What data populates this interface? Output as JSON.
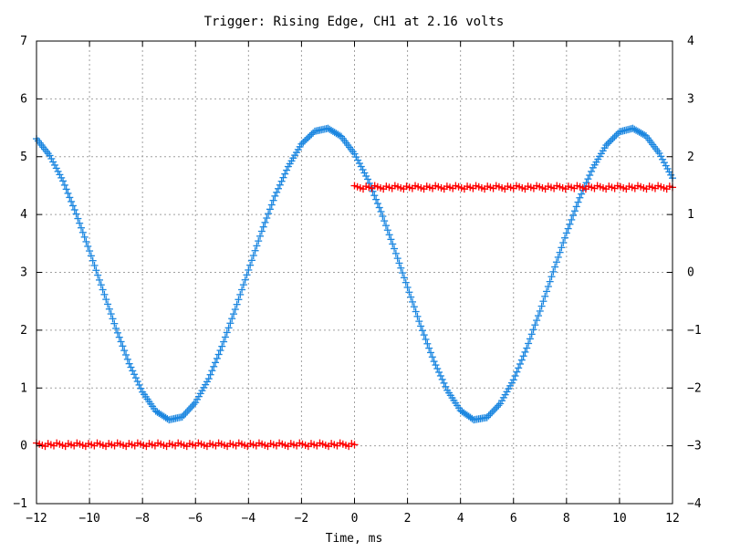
{
  "chart_data": {
    "type": "scatter",
    "title": "Trigger: Rising Edge, CH1 at 2.16 volts",
    "xlabel": "Time, ms",
    "ylabel": "",
    "y2label": "",
    "xlim": [
      -12,
      12
    ],
    "ylim": [
      -1,
      7
    ],
    "y2lim": [
      -4,
      4
    ],
    "x_ticks": [
      "-12",
      "-10",
      "-8",
      "-6",
      "-4",
      "-2",
      "0",
      "2",
      "4",
      "6",
      "8",
      "10",
      "12"
    ],
    "y_ticks": [
      "-1",
      "0",
      "1",
      "2",
      "3",
      "4",
      "5",
      "6",
      "7"
    ],
    "y2_ticks": [
      "-4",
      "-3",
      "-2",
      "-1",
      "0",
      "1",
      "2",
      "3",
      "4"
    ],
    "grid": true,
    "marker": "+",
    "series": [
      {
        "color": "#1a86e0",
        "axis": "left",
        "x": [
          -12,
          -11.5,
          -11,
          -10.5,
          -10,
          -9.5,
          -9,
          -8.5,
          -8,
          -7.5,
          -7,
          -6.5,
          -6,
          -5.5,
          -5,
          -4.5,
          -4,
          -3.5,
          -3,
          -2.5,
          -2,
          -1.5,
          -1,
          -0.5,
          0,
          0.5,
          1,
          1.5,
          2,
          2.5,
          3,
          3.5,
          4,
          4.5,
          5,
          5.5,
          6,
          6.5,
          7,
          7.5,
          8,
          8.5,
          9,
          9.5,
          10,
          10.5,
          11,
          11.5,
          12
        ],
        "y": [
          5.31,
          5.02,
          4.58,
          4.01,
          3.37,
          2.7,
          2.03,
          1.42,
          0.93,
          0.6,
          0.45,
          0.5,
          0.75,
          1.16,
          1.72,
          2.36,
          3.04,
          3.71,
          4.32,
          4.83,
          5.22,
          5.44,
          5.49,
          5.35,
          5.05,
          4.61,
          4.05,
          3.41,
          2.74,
          2.07,
          1.46,
          0.96,
          0.61,
          0.45,
          0.49,
          0.73,
          1.14,
          1.69,
          2.33,
          3.01,
          3.68,
          4.29,
          4.81,
          5.2,
          5.43,
          5.49,
          5.36,
          5.06,
          4.63
        ]
      },
      {
        "color": "#ff0000",
        "axis": "left",
        "segments": [
          {
            "x0": -12,
            "x1": 0,
            "y": 0.02
          },
          {
            "x0": 0,
            "x1": 12,
            "y": 4.47
          }
        ]
      }
    ]
  }
}
